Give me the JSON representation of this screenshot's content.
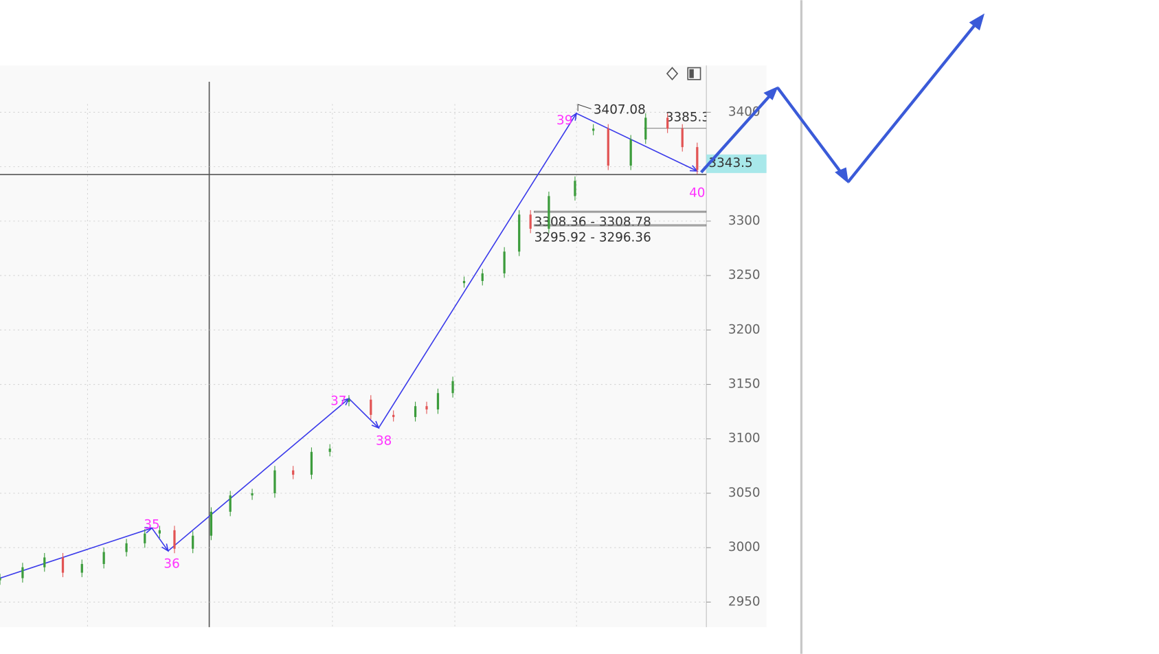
{
  "chart_data": {
    "type": "line",
    "ylim": [
      2927,
      3443
    ],
    "xlim": [
      0,
      100
    ],
    "yticks": [
      2950,
      3000,
      3050,
      3100,
      3150,
      3200,
      3250,
      3300,
      3350,
      3400
    ],
    "grid": true,
    "series": [
      {
        "color": "#3a3aea",
        "x": [
          0,
          21.5,
          23.8,
          49.4,
          53.6,
          81.6,
          98.7
        ],
        "values": [
          2972,
          3018,
          2997,
          3137,
          3110,
          3399,
          3346
        ],
        "point_labels": [
          null,
          "35",
          "36",
          "37",
          "38",
          "39",
          "40"
        ],
        "label_color": "#ff33ff"
      },
      {
        "up_color": "#3c9c3c",
        "down_color": "#e25454",
        "x": [
          0,
          3.2,
          6.3,
          8.9,
          11.6,
          14.7,
          17.9,
          20.5,
          22.6,
          24.7,
          27.3,
          29.9,
          32.6,
          35.7,
          38.9,
          41.5,
          44.1,
          46.7,
          47.3,
          49.4,
          52.5,
          55.7,
          58.8,
          60.4,
          62.0,
          64.1,
          64.3,
          65.7,
          68.3,
          71.4,
          73.5,
          75.1,
          77.7,
          81.4,
          82.5,
          84.0,
          86.1,
          89.3,
          91.4,
          94.5,
          96.6,
          98.7
        ],
        "values": [
          2972,
          2982,
          2991,
          2977,
          2985,
          2996,
          3004,
          3013,
          3016,
          2999,
          3011,
          3033,
          3048,
          3050,
          3071,
          3067,
          3088,
          3091,
          null,
          3136,
          3122,
          3120,
          3130,
          3127,
          3142,
          3153,
          null,
          3245,
          3252,
          3272,
          3306,
          3293,
          3323,
          3337,
          null,
          3385,
          3351,
          3375,
          3395,
          3385,
          3368,
          3347
        ]
      }
    ],
    "high_label": "3407.08",
    "level": 3385.3,
    "last_price": 3343.5,
    "zones": [
      {
        "low": 3308.36,
        "high": 3308.78,
        "label": "3308.36 - 3308.78"
      },
      {
        "low": 3295.92,
        "high": 3296.36,
        "label": "3295.92 - 3296.36"
      }
    ]
  }
}
